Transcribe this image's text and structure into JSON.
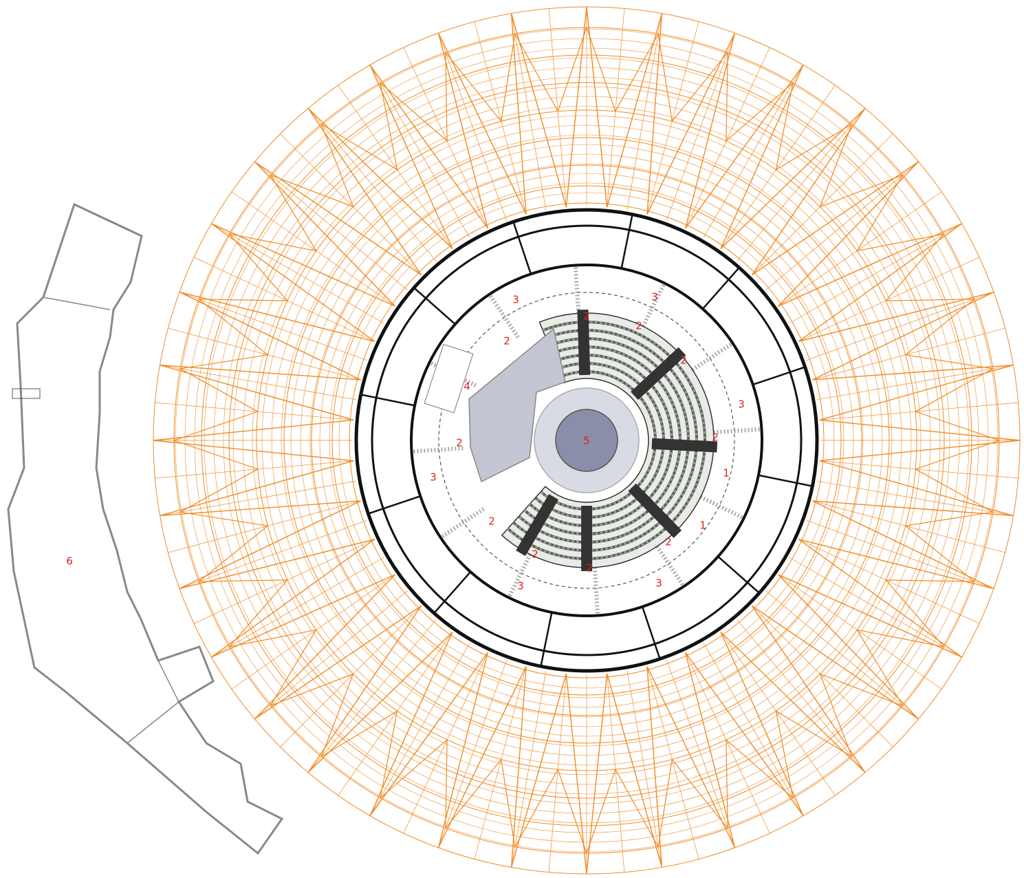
{
  "labels": [
    "3",
    "3",
    "3",
    "3",
    "3",
    "3",
    "2",
    "2",
    "2",
    "2",
    "2",
    "2",
    "2",
    "2",
    "2",
    "2",
    "1",
    "1",
    "4",
    "5",
    "6"
  ]
}
